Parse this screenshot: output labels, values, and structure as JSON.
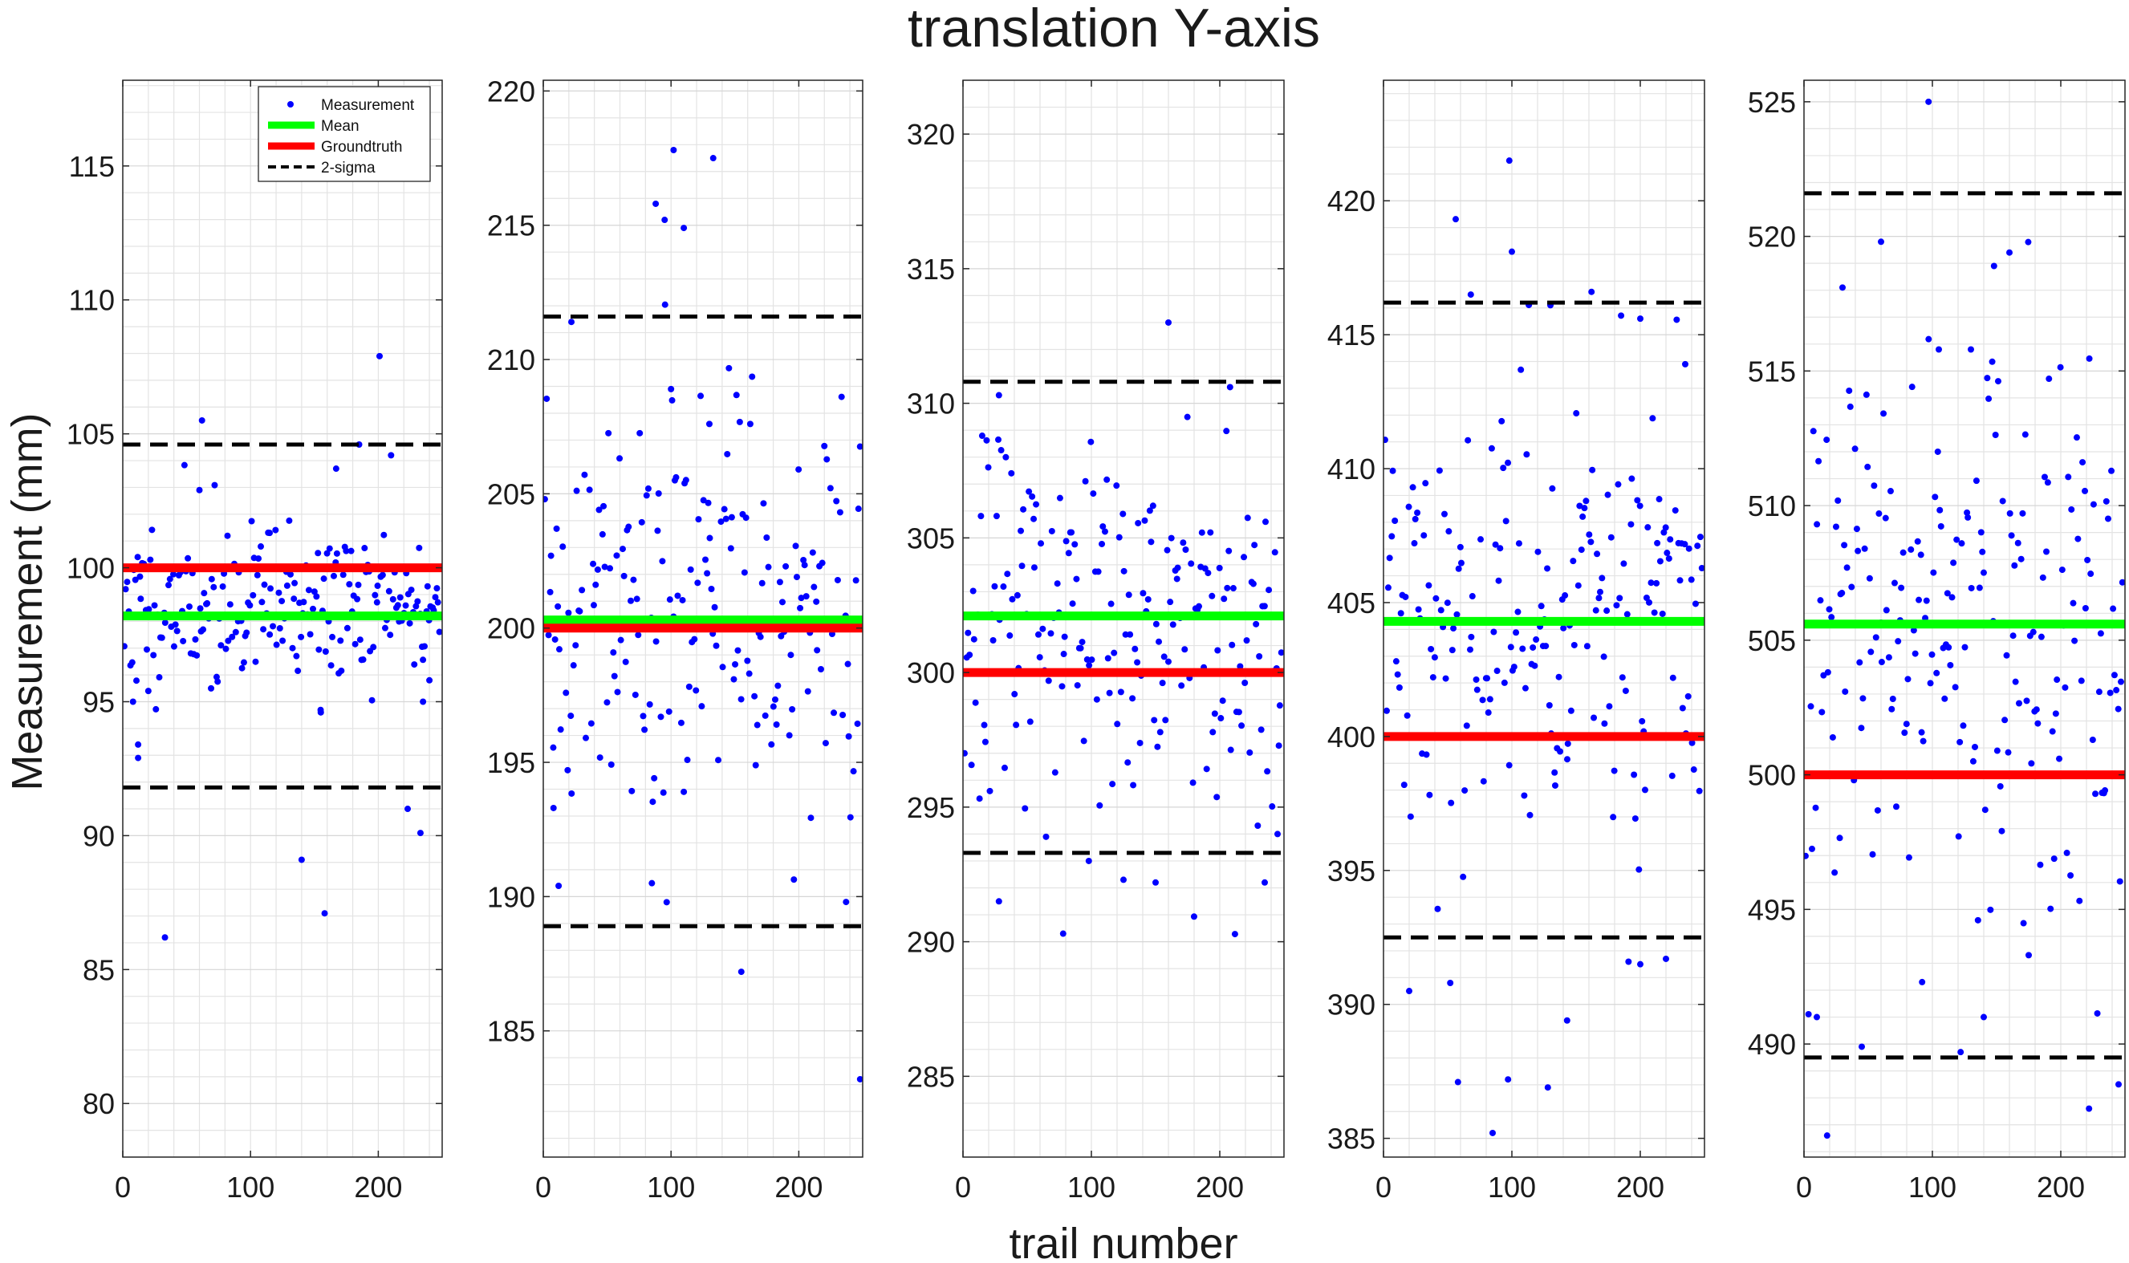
{
  "figure": {
    "title": "translation Y-axis",
    "xlabel": "trail number",
    "ylabel": "Measurement (mm)"
  },
  "legend": {
    "entries": [
      {
        "label": "Measurement",
        "symbol": "dot",
        "color": "#0000ff"
      },
      {
        "label": "Mean",
        "symbol": "line",
        "color": "#00ff00"
      },
      {
        "label": "Groundtruth",
        "symbol": "line",
        "color": "#ff0000"
      },
      {
        "label": "2-sigma",
        "symbol": "dashed",
        "color": "#000000"
      }
    ],
    "location": "top-right of first panel"
  },
  "colors": {
    "measurement": "#0000ff",
    "mean": "#00ff00",
    "groundtruth": "#ff0000",
    "sigma": "#000000",
    "grid": "#e3e3e3",
    "axes": "#262626"
  },
  "chart_data": [
    {
      "type": "scatter",
      "xlim": [
        0,
        250
      ],
      "ylim": [
        78,
        118.2
      ],
      "xticks": [
        0,
        100,
        200
      ],
      "yticks": [
        80,
        85,
        90,
        95,
        100,
        105,
        110,
        115
      ],
      "grid": true,
      "legend": true,
      "groundtruth": 100,
      "mean": 98.2,
      "sigma_upper": 104.6,
      "sigma_lower": 91.8,
      "outliers": [
        [
          33,
          86.2
        ],
        [
          62,
          105.5
        ],
        [
          60,
          102.9
        ],
        [
          140,
          89.1
        ],
        [
          158,
          87.1
        ],
        [
          167,
          103.7
        ],
        [
          185,
          104.6
        ],
        [
          201,
          107.9
        ],
        [
          210,
          104.2
        ],
        [
          223,
          91.0
        ],
        [
          233,
          90.1
        ],
        [
          235,
          95.0
        ],
        [
          8,
          95.0
        ],
        [
          12,
          93.4
        ],
        [
          12,
          92.9
        ],
        [
          20,
          95.4
        ],
        [
          115,
          101.3
        ],
        [
          155,
          94.6
        ],
        [
          240,
          95.8
        ]
      ],
      "cloud": {
        "n": 210,
        "center": 98.5,
        "spread": 1.5,
        "seed": 11
      }
    },
    {
      "type": "scatter",
      "xlim": [
        0,
        250
      ],
      "ylim": [
        180.3,
        220.4
      ],
      "xticks": [
        0,
        100,
        200
      ],
      "yticks": [
        185,
        190,
        195,
        200,
        205,
        210,
        215,
        220
      ],
      "grid": true,
      "legend": false,
      "groundtruth": 200,
      "mean": 200.3,
      "sigma_upper": 211.6,
      "sigma_lower": 188.9,
      "outliers": [
        [
          22,
          211.4
        ],
        [
          88,
          215.8
        ],
        [
          95,
          215.2
        ],
        [
          110,
          214.9
        ],
        [
          102,
          217.8
        ],
        [
          133,
          217.5
        ],
        [
          100,
          208.9
        ],
        [
          130,
          207.6
        ],
        [
          162,
          207.6
        ],
        [
          12,
          190.4
        ],
        [
          85,
          190.5
        ],
        [
          155,
          187.2
        ],
        [
          237,
          189.8
        ],
        [
          248,
          183.2
        ],
        [
          8,
          193.3
        ],
        [
          110,
          193.9
        ]
      ],
      "cloud": {
        "n": 200,
        "center": 200.5,
        "spread": 3.6,
        "seed": 22
      }
    },
    {
      "type": "scatter",
      "xlim": [
        0,
        250
      ],
      "ylim": [
        282,
        322
      ],
      "xticks": [
        0,
        100,
        200
      ],
      "yticks": [
        285,
        290,
        295,
        300,
        305,
        310,
        315,
        320
      ],
      "grid": true,
      "legend": false,
      "groundtruth": 300,
      "mean": 302.1,
      "sigma_upper": 310.8,
      "sigma_lower": 293.3,
      "outliers": [
        [
          160,
          313.0
        ],
        [
          28,
          310.3
        ],
        [
          208,
          310.6
        ],
        [
          28,
          291.5
        ],
        [
          78,
          290.3
        ],
        [
          98,
          293.0
        ],
        [
          125,
          292.3
        ],
        [
          150,
          292.2
        ],
        [
          235,
          292.2
        ],
        [
          245,
          294.0
        ]
      ],
      "cloud": {
        "n": 200,
        "center": 302.0,
        "spread": 3.6,
        "seed": 33
      }
    },
    {
      "type": "scatter",
      "xlim": [
        0,
        250
      ],
      "ylim": [
        384.3,
        424.5
      ],
      "xticks": [
        0,
        100,
        200
      ],
      "yticks": [
        385,
        390,
        395,
        400,
        405,
        410,
        415,
        420
      ],
      "grid": true,
      "legend": false,
      "groundtruth": 400,
      "mean": 404.3,
      "sigma_upper": 416.2,
      "sigma_lower": 392.5,
      "outliers": [
        [
          98,
          421.5
        ],
        [
          100,
          418.1
        ],
        [
          68,
          416.5
        ],
        [
          162,
          416.6
        ],
        [
          130,
          416.1
        ],
        [
          200,
          415.6
        ],
        [
          235,
          413.9
        ],
        [
          20,
          390.5
        ],
        [
          58,
          387.1
        ],
        [
          85,
          385.2
        ],
        [
          97,
          387.2
        ],
        [
          128,
          386.9
        ],
        [
          143,
          389.4
        ],
        [
          200,
          391.5
        ],
        [
          220,
          391.7
        ],
        [
          52,
          390.8
        ]
      ],
      "cloud": {
        "n": 200,
        "center": 404.5,
        "spread": 4.3,
        "seed": 44
      }
    },
    {
      "type": "scatter",
      "xlim": [
        0,
        250
      ],
      "ylim": [
        485.8,
        525.8
      ],
      "xticks": [
        0,
        100,
        200
      ],
      "yticks": [
        490,
        495,
        500,
        505,
        510,
        515,
        520,
        525
      ],
      "grid": true,
      "legend": false,
      "groundtruth": 500,
      "mean": 505.6,
      "sigma_upper": 521.6,
      "sigma_lower": 489.5,
      "outliers": [
        [
          97,
          525.0
        ],
        [
          60,
          519.8
        ],
        [
          160,
          519.4
        ],
        [
          148,
          518.9
        ],
        [
          30,
          518.1
        ],
        [
          105,
          515.8
        ],
        [
          130,
          515.8
        ],
        [
          18,
          486.6
        ],
        [
          222,
          487.6
        ],
        [
          245,
          488.5
        ],
        [
          10,
          491.0
        ],
        [
          45,
          489.9
        ],
        [
          92,
          492.3
        ],
        [
          122,
          489.7
        ],
        [
          140,
          491.0
        ],
        [
          175,
          493.3
        ]
      ],
      "cloud": {
        "n": 200,
        "center": 506.0,
        "spread": 5.6,
        "seed": 55
      }
    }
  ]
}
